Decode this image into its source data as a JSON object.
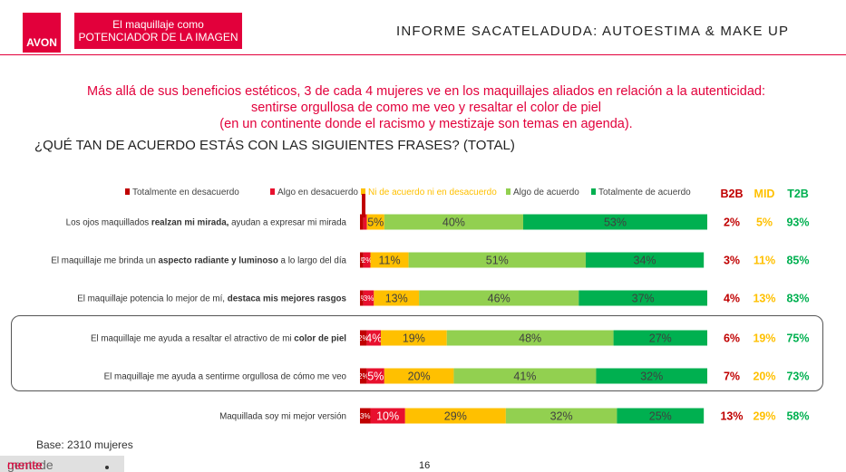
{
  "header": {
    "logo_text": "AVON",
    "box_line1": "El maquillaje como",
    "box_line2": "POTENCIADOR DE LA IMAGEN",
    "title": "INFORME SACATELADUDA: AUTOESTIMA & MAKE UP"
  },
  "headline": [
    "Más allá de sus beneficios estéticos, 3 de cada 4 mujeres ve en los maquillajes aliados en relación a la autenticidad:",
    "sentirse orgullosa de como me veo y resaltar el color de piel",
    "(en un continente donde el racismo y mestizaje son temas en agenda)."
  ],
  "question": "¿QUÉ TAN DE ACUERDO ESTÁS CON LAS SIGUIENTES FRASES? (TOTAL)",
  "footer": {
    "base": "Base: 2310 mujeres",
    "page": "16",
    "brand_left": "gentede",
    "brand_right": "mente"
  },
  "colors": {
    "totalmente_desacuerdo": "#c00000",
    "algo_desacuerdo": "#e8102e",
    "ni_ni": "#ffc000",
    "algo_acuerdo": "#92d050",
    "totalmente_acuerdo": "#00b050",
    "b2b": "#c00000",
    "mid": "#ffc000",
    "t2b": "#00b050"
  },
  "chart_data": {
    "type": "bar",
    "orientation": "horizontal",
    "stacked": true,
    "legend": {
      "placement": "top",
      "entries": [
        "Totalmente en desacuerdo",
        "Algo en desacuerdo",
        "Ni de acuerdo ni en desacuerdo",
        "Algo de acuerdo",
        "Totalmente de acuerdo"
      ]
    },
    "summary_headers": [
      "B2B",
      "MID",
      "T2B"
    ],
    "categories": [
      {
        "segments": [
          {
            "text": "Los ojos maquillados "
          },
          {
            "text": "realzan mi mirada,",
            "bold": true
          },
          {
            "text": " ayudan a expresar mi  mirada"
          }
        ]
      },
      {
        "segments": [
          {
            "text": "El maquillaje me brinda un "
          },
          {
            "text": "aspecto radiante y luminoso",
            "bold": true
          },
          {
            "text": " a lo largo del día"
          }
        ]
      },
      {
        "segments": [
          {
            "text": "El maquillaje potencia lo mejor de mí, "
          },
          {
            "text": "destaca mis mejores rasgos",
            "bold": true
          }
        ]
      },
      {
        "segments": [
          {
            "text": "El maquillaje me ayuda a resaltar el atractivo de mi "
          },
          {
            "text": "color de piel",
            "bold": true
          }
        ]
      },
      {
        "segments": [
          {
            "text": "El maquillaje me ayuda a sentirme orgullosa de cómo me veo"
          }
        ]
      },
      {
        "segments": [
          {
            "text": "Maquillada soy mi mejor versión"
          }
        ]
      }
    ],
    "series": [
      {
        "name": "Totalmente en desacuerdo",
        "values": [
          1,
          1,
          1,
          2,
          2,
          3
        ],
        "labels": [
          "",
          "1%",
          "1%",
          "2%",
          "2%",
          "3%"
        ]
      },
      {
        "name": "Algo en desacuerdo",
        "values": [
          1,
          2,
          3,
          4,
          5,
          10
        ],
        "labels": [
          "",
          "2%",
          "3%",
          "4%",
          "5%",
          "10%"
        ]
      },
      {
        "name": "Ni de acuerdo ni en desacuerdo",
        "values": [
          5,
          11,
          13,
          19,
          20,
          29
        ],
        "labels": [
          "5%",
          "11%",
          "13%",
          "19%",
          "20%",
          "29%"
        ]
      },
      {
        "name": "Algo de acuerdo",
        "values": [
          40,
          51,
          46,
          48,
          41,
          32
        ],
        "labels": [
          "40%",
          "51%",
          "46%",
          "48%",
          "41%",
          "32%"
        ]
      },
      {
        "name": "Totalmente de acuerdo",
        "values": [
          53,
          34,
          37,
          27,
          32,
          25
        ],
        "labels": [
          "53%",
          "34%",
          "37%",
          "27%",
          "32%",
          "25%"
        ]
      }
    ],
    "b2b": [
      "2%",
      "3%",
      "4%",
      "6%",
      "7%",
      "13%"
    ],
    "mid": [
      "5%",
      "11%",
      "13%",
      "19%",
      "20%",
      "29%"
    ],
    "t2b": [
      "93%",
      "85%",
      "83%",
      "75%",
      "73%",
      "58%"
    ],
    "xlim": [
      0,
      100
    ],
    "grid": false
  }
}
